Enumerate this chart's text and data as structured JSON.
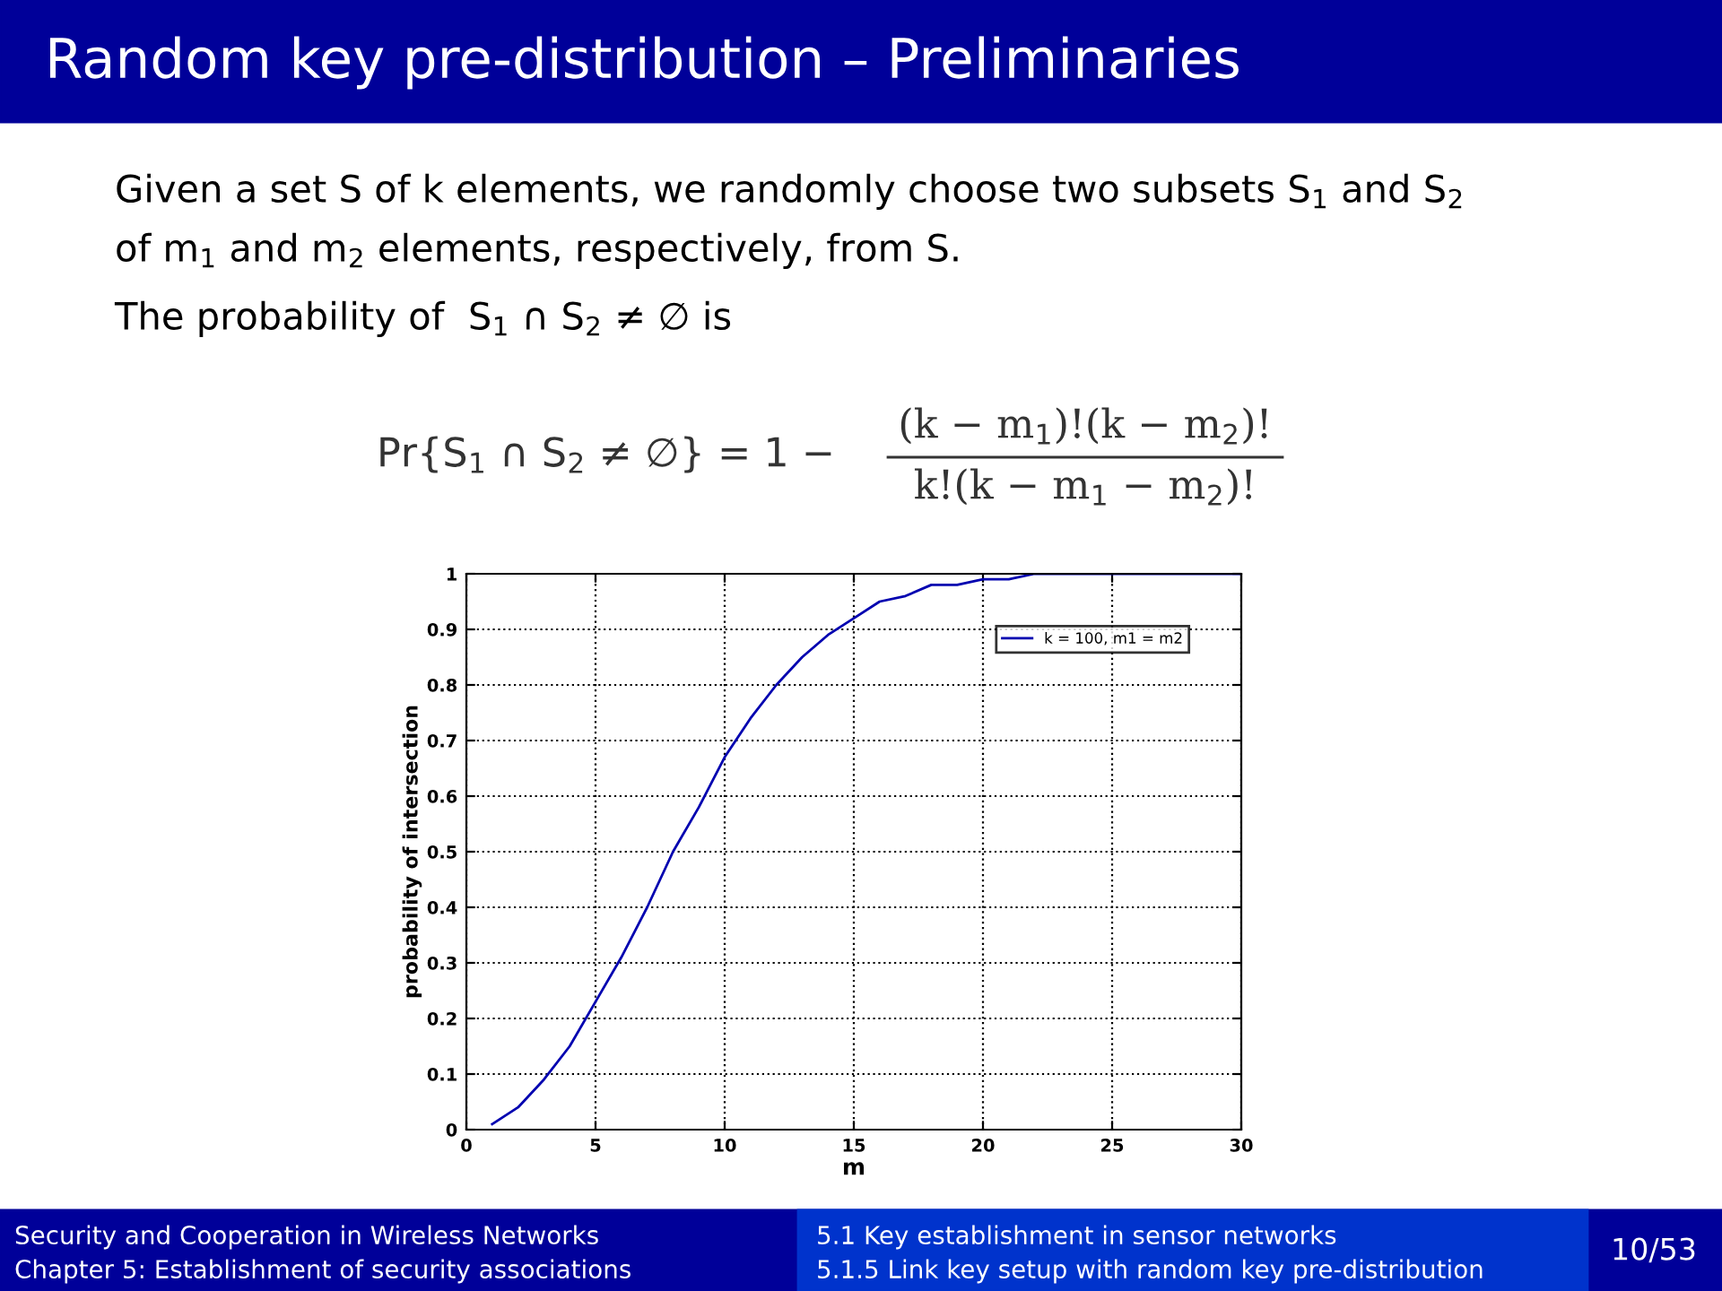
{
  "chart_data": {
    "type": "line",
    "title": "Random key pre-distribution – Preliminaries",
    "xlabel": "m",
    "ylabel": "probability of intersection",
    "annotations": [
      "Given a set S of k elements, we randomly choose two subsets S$_{1}$ and S$_{2}$",
      "of m$_{1}$ and m$_{2}$ elements, respectively, from S.",
      "The probability of  S$_{1}$ ∩ S$_{2}$ ≠ ∅ is",
      "Pr{S$_{1}$ ∩ S$_{2}$ ≠ ∅} = 1 −",
      "(k − m$_{1}$)!(k − m$_{2}$)!",
      "k!(k − m$_{1}$ − m$_{2}$)!",
      "Security and Cooperation in Wireless Networks",
      "Chapter 5: Establishment of security associations",
      "5.1 Key establishment in sensor networks",
      "5.1.5 Link key setup with random key pre-distribution",
      "10/53"
    ],
    "x": [
      1,
      2,
      3,
      4,
      5,
      6,
      7,
      8,
      9,
      10,
      11,
      12,
      13,
      14,
      15,
      16,
      17,
      18,
      19,
      20,
      21,
      22,
      23,
      24,
      25,
      26,
      27,
      28,
      29,
      30
    ],
    "series": [
      {
        "name": "k = 100, m1 = m2",
        "color": "#0000b0",
        "values": [
          0.01,
          0.04,
          0.09,
          0.15,
          0.23,
          0.31,
          0.4,
          0.5,
          0.58,
          0.67,
          0.74,
          0.8,
          0.85,
          0.89,
          0.92,
          0.95,
          0.96,
          0.98,
          0.98,
          0.99,
          0.99,
          1.0,
          1.0,
          1.0,
          1.0,
          1.0,
          1.0,
          1.0,
          1.0,
          1.0
        ]
      }
    ],
    "xlim": [
      0,
      30
    ],
    "ylim": [
      0,
      1
    ],
    "xticks": [
      0,
      5,
      10,
      15,
      20,
      25,
      30
    ],
    "yticks": [
      0,
      0.1,
      0.2,
      0.3,
      0.4,
      0.5,
      0.6,
      0.7,
      0.8,
      0.9,
      1
    ],
    "grid": true,
    "legend": "top right",
    "marker": "none",
    "line_style": "solid"
  }
}
